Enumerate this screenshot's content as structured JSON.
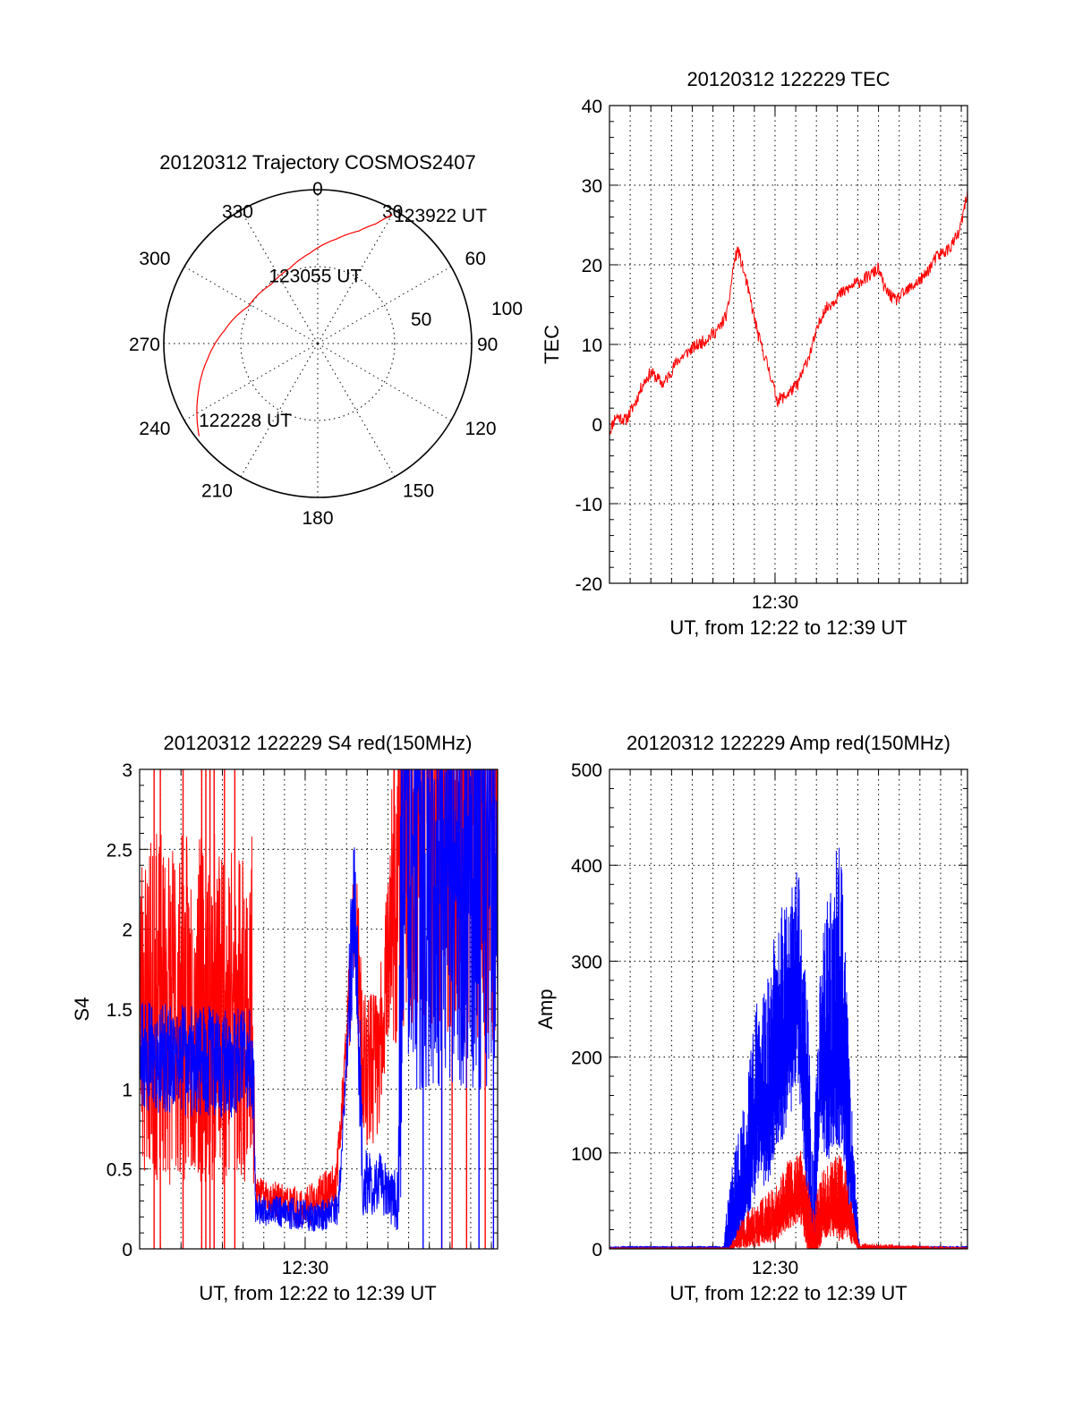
{
  "colors": {
    "red": "#ff0000",
    "blue": "#0000ff",
    "black": "#000000"
  },
  "chart_data": [
    {
      "id": "polar",
      "type": "polar",
      "title": "20120312 Trajectory COSMOS2407",
      "azimuth_labels": [
        "0",
        "30",
        "60",
        "90",
        "120",
        "150",
        "180",
        "210",
        "240",
        "270",
        "300",
        "330"
      ],
      "radial_labels": [
        "50",
        "100"
      ],
      "radius_max": 90,
      "inner_ring": 45,
      "track": [
        [
          232,
          2
        ],
        [
          247,
          14
        ],
        [
          262,
          25
        ],
        [
          278,
          35
        ],
        [
          298,
          44
        ],
        [
          322,
          46
        ],
        [
          340,
          43
        ],
        [
          355,
          37
        ],
        [
          10,
          28
        ],
        [
          20,
          20
        ],
        [
          26,
          12
        ],
        [
          30,
          3
        ]
      ],
      "annotations": [
        {
          "text": "123922 UT",
          "az": 30,
          "el": 3
        },
        {
          "text": "123055 UT",
          "az": 4,
          "el": 50
        },
        {
          "text": "122228 UT",
          "az": 238,
          "el": 8
        }
      ]
    },
    {
      "id": "tec",
      "type": "line",
      "title": "20120312 122229 TEC",
      "xlabel": "UT, from 12:22 to 12:39 UT",
      "ylabel": "TEC",
      "xlim": [
        0,
        17.3
      ],
      "ylim": [
        -20,
        40
      ],
      "yticks": [
        -20,
        -10,
        0,
        10,
        20,
        30,
        40
      ],
      "xticklabels": [
        {
          "x": 8,
          "label": "12:30"
        }
      ],
      "series": [
        {
          "name": "TEC",
          "color": "#ff0000",
          "noise": 0.8,
          "points": [
            [
              0,
              -1
            ],
            [
              0.3,
              1
            ],
            [
              0.8,
              0.5
            ],
            [
              1.3,
              3
            ],
            [
              1.6,
              5
            ],
            [
              2,
              6.5
            ],
            [
              2.6,
              5
            ],
            [
              3.3,
              8
            ],
            [
              4,
              9.5
            ],
            [
              4.6,
              10.5
            ],
            [
              5.3,
              12
            ],
            [
              5.7,
              14
            ],
            [
              6,
              20
            ],
            [
              6.2,
              22
            ],
            [
              6.6,
              18
            ],
            [
              7.2,
              11
            ],
            [
              7.8,
              6
            ],
            [
              8.1,
              3
            ],
            [
              8.5,
              3.5
            ],
            [
              9.1,
              5
            ],
            [
              9.7,
              9
            ],
            [
              10.3,
              14
            ],
            [
              11,
              16
            ],
            [
              11.8,
              17.5
            ],
            [
              12.5,
              18.5
            ],
            [
              13,
              19.5
            ],
            [
              13.3,
              17
            ],
            [
              13.8,
              15.5
            ],
            [
              14.5,
              17
            ],
            [
              15.2,
              18.5
            ],
            [
              15.8,
              21
            ],
            [
              16.4,
              22
            ],
            [
              16.9,
              24
            ],
            [
              17.3,
              29
            ]
          ]
        }
      ]
    },
    {
      "id": "s4",
      "type": "line",
      "title": "20120312 122229 S4 red(150MHz)",
      "xlabel": "UT, from 12:22 to 12:39 UT",
      "ylabel": "S4",
      "xlim": [
        0,
        17.3
      ],
      "ylim": [
        0,
        3
      ],
      "yticks": [
        0,
        0.5,
        1,
        1.5,
        2,
        2.5,
        3
      ],
      "xticklabels": [
        {
          "x": 8,
          "label": "12:30"
        }
      ],
      "series": [
        {
          "name": "red",
          "color": "#ff0000",
          "points": [
            [
              0,
              1.5
            ],
            [
              5.5,
              1.5
            ],
            [
              5.6,
              0.35
            ],
            [
              8,
              0.25
            ],
            [
              9.5,
              0.4
            ],
            [
              10,
              1.3
            ],
            [
              10.4,
              2.1
            ],
            [
              10.8,
              1.1
            ],
            [
              11.6,
              1.2
            ],
            [
              12.1,
              2
            ],
            [
              12.8,
              2.8
            ],
            [
              17.3,
              2.8
            ]
          ],
          "noise": [
            [
              0,
              1.1
            ],
            [
              5.5,
              1.1
            ],
            [
              5.6,
              0.1
            ],
            [
              9.8,
              0.15
            ],
            [
              10.5,
              0.5
            ],
            [
              12,
              0.5
            ],
            [
              12.5,
              1.5
            ],
            [
              17.3,
              1.5
            ]
          ],
          "spikes": [
            [
              0.7,
              0
            ],
            [
              1,
              0
            ],
            [
              2.1,
              0
            ],
            [
              3,
              0
            ],
            [
              3.2,
              0
            ],
            [
              3.4,
              0
            ],
            [
              3.6,
              0
            ],
            [
              4.1,
              0
            ],
            [
              4.6,
              0
            ],
            [
              14.6,
              0
            ],
            [
              15.1,
              0
            ],
            [
              15.8,
              0
            ],
            [
              16.7,
              0
            ]
          ]
        },
        {
          "name": "blue",
          "color": "#0000ff",
          "points": [
            [
              0,
              1.2
            ],
            [
              5.5,
              1.15
            ],
            [
              5.6,
              0.25
            ],
            [
              8.7,
              0.2
            ],
            [
              9.6,
              0.25
            ],
            [
              10.1,
              1.4
            ],
            [
              10.4,
              2.2
            ],
            [
              10.8,
              0.4
            ],
            [
              11.8,
              0.4
            ],
            [
              12.5,
              0.3
            ],
            [
              12.7,
              2.5
            ],
            [
              17.3,
              2.5
            ]
          ],
          "noise": [
            [
              0,
              0.35
            ],
            [
              5.5,
              0.35
            ],
            [
              5.6,
              0.1
            ],
            [
              10,
              0.1
            ],
            [
              10.2,
              0.6
            ],
            [
              11,
              0.2
            ],
            [
              12.5,
              0.2
            ],
            [
              12.6,
              1.5
            ],
            [
              17.3,
              1.5
            ]
          ],
          "spikes": [
            [
              13.7,
              0
            ],
            [
              14.6,
              0
            ],
            [
              16.4,
              0
            ],
            [
              17.1,
              0
            ]
          ]
        }
      ]
    },
    {
      "id": "amp",
      "type": "line",
      "title": "20120312 122229 Amp red(150MHz)",
      "xlabel": "UT, from 12:22 to 12:39 UT",
      "ylabel": "Amp",
      "xlim": [
        0,
        17.3
      ],
      "ylim": [
        0,
        500
      ],
      "yticks": [
        0,
        100,
        200,
        300,
        400,
        500
      ],
      "xticklabels": [
        {
          "x": 8,
          "label": "12:30"
        }
      ],
      "series": [
        {
          "name": "blue",
          "color": "#0000ff",
          "fill_to": "bottom",
          "points": [
            [
              0,
              2
            ],
            [
              5.5,
              2
            ],
            [
              5.8,
              30
            ],
            [
              6.5,
              90
            ],
            [
              7.1,
              170
            ],
            [
              7.6,
              180
            ],
            [
              8.1,
              240
            ],
            [
              8.6,
              260
            ],
            [
              9.1,
              300
            ],
            [
              9.6,
              160
            ],
            [
              9.8,
              10
            ],
            [
              10.2,
              220
            ],
            [
              10.8,
              260
            ],
            [
              11.2,
              300
            ],
            [
              11.5,
              160
            ],
            [
              11.9,
              40
            ],
            [
              12.1,
              2
            ],
            [
              17.3,
              2
            ]
          ],
          "noise": [
            [
              0,
              1
            ],
            [
              5.5,
              1
            ],
            [
              5.8,
              40
            ],
            [
              7,
              80
            ],
            [
              8.5,
              110
            ],
            [
              9.5,
              100
            ],
            [
              10.1,
              60
            ],
            [
              10.5,
              120
            ],
            [
              11.2,
              150
            ],
            [
              11.8,
              40
            ],
            [
              12.1,
              1
            ],
            [
              17.3,
              1
            ]
          ]
        },
        {
          "name": "red",
          "color": "#ff0000",
          "fill_to": "bottom",
          "points": [
            [
              0,
              1
            ],
            [
              5.8,
              1
            ],
            [
              6.5,
              20
            ],
            [
              7.3,
              30
            ],
            [
              8,
              40
            ],
            [
              8.6,
              60
            ],
            [
              9.2,
              70
            ],
            [
              9.6,
              40
            ],
            [
              9.8,
              5
            ],
            [
              10.3,
              50
            ],
            [
              10.9,
              60
            ],
            [
              11.4,
              55
            ],
            [
              11.8,
              20
            ],
            [
              12.1,
              1
            ],
            [
              17.3,
              1
            ]
          ],
          "noise": [
            [
              0,
              0.5
            ],
            [
              5.8,
              0.5
            ],
            [
              6.5,
              15
            ],
            [
              8.5,
              30
            ],
            [
              9.4,
              35
            ],
            [
              10.2,
              30
            ],
            [
              11.2,
              40
            ],
            [
              12,
              5
            ],
            [
              17.3,
              0.5
            ]
          ]
        }
      ]
    }
  ]
}
